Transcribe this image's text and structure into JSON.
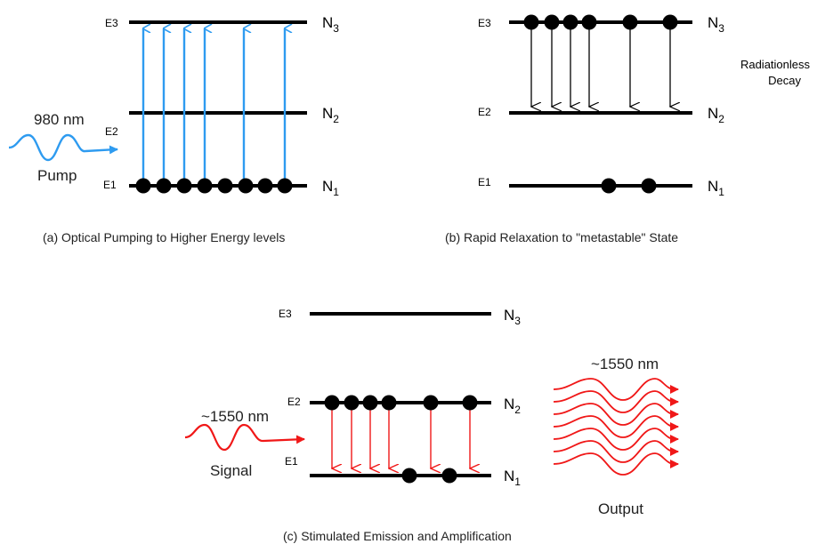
{
  "colors": {
    "pump": "#2e9bf0",
    "red": "#f01818",
    "black": "#000000"
  },
  "panel_a": {
    "levels": {
      "E3": "E3",
      "E2": "E2",
      "E1": "E1"
    },
    "populations": {
      "N3": "N",
      "N3_sub": "3",
      "N2": "N",
      "N2_sub": "2",
      "N1": "N",
      "N1_sub": "1"
    },
    "pump_wavelength": "980 nm",
    "pump_label": "Pump",
    "caption": "(a)  Optical Pumping to Higher Energy levels"
  },
  "panel_b": {
    "levels": {
      "E3": "E3",
      "E2": "E2",
      "E1": "E1"
    },
    "populations": {
      "N3": "N",
      "N3_sub": "3",
      "N2": "N",
      "N2_sub": "2",
      "N1": "N",
      "N1_sub": "1"
    },
    "decay_label_1": "Radiationless",
    "decay_label_2": "Decay",
    "caption": "(b)  Rapid Relaxation to \"metastable\" State"
  },
  "panel_c": {
    "levels": {
      "E3": "E3",
      "E2": "E2",
      "E1": "E1"
    },
    "populations": {
      "N3": "N",
      "N3_sub": "3",
      "N2": "N",
      "N2_sub": "2",
      "N1": "N",
      "N1_sub": "1"
    },
    "signal_wavelength": "~1550 nm",
    "signal_label": "Signal",
    "output_wavelength": "~1550 nm",
    "output_label": "Output",
    "caption": "(c)  Stimulated Emission and Amplification"
  }
}
